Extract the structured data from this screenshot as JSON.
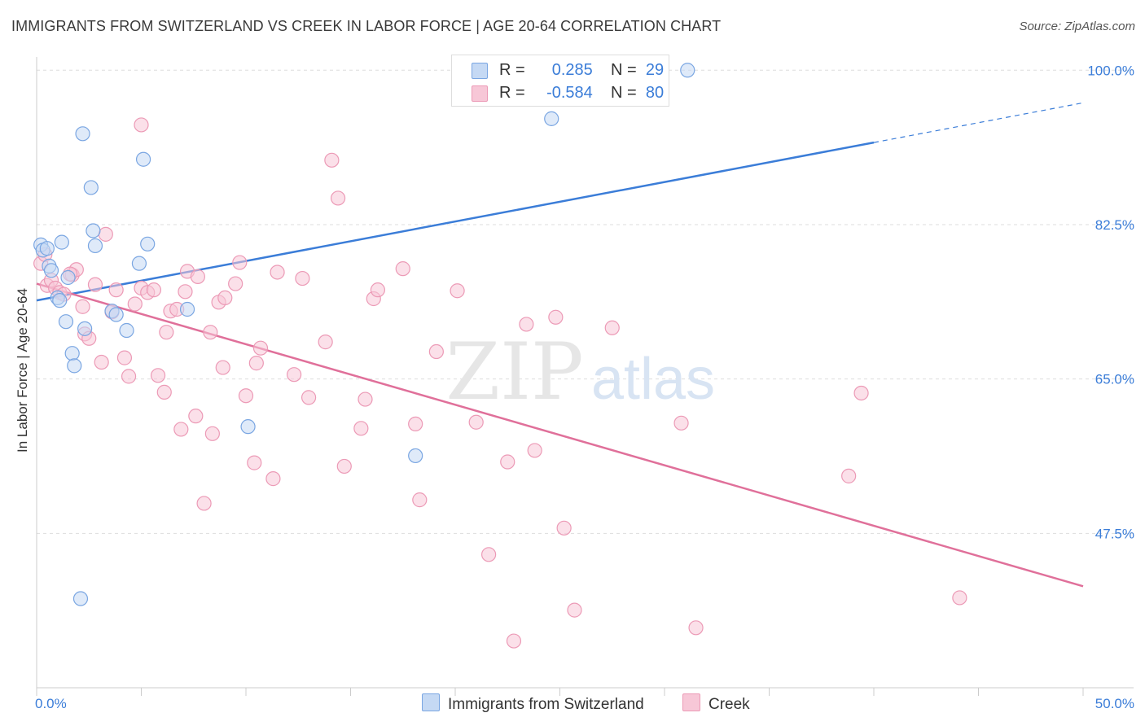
{
  "title": "IMMIGRANTS FROM SWITZERLAND VS CREEK IN LABOR FORCE | AGE 20-64 CORRELATION CHART",
  "source": "Source: ZipAtlas.com",
  "watermark": {
    "zip": "ZIP",
    "atlas": "atlas"
  },
  "legend_top": [
    {
      "r_label": "R =",
      "r_value": "0.285",
      "n_label": "N =",
      "n_value": "29"
    },
    {
      "r_label": "R =",
      "r_value": "-0.584",
      "n_label": "N =",
      "n_value": "80"
    }
  ],
  "colors": {
    "blue": "#3b7dd8",
    "blue_fill": "#c5d9f4",
    "blue_stroke": "#7aa6e2",
    "pink": "#e0709a",
    "pink_fill": "#f7c7d7",
    "pink_stroke": "#ec9ab6",
    "grid": "#dddddd",
    "axis_label": "#3b7dd8"
  },
  "chart_data": {
    "type": "scatter",
    "title": "IMMIGRANTS FROM SWITZERLAND VS CREEK IN LABOR FORCE | AGE 20-64 CORRELATION CHART",
    "xlabel": "",
    "ylabel": "In Labor Force | Age 20-64",
    "xlim": [
      0,
      50
    ],
    "ylim": [
      30,
      101.5
    ],
    "x_tick_labels": [
      "0.0%",
      "50.0%"
    ],
    "y_ticks": [
      47.5,
      65.0,
      82.5,
      100.0
    ],
    "y_tick_labels": [
      "47.5%",
      "65.0%",
      "82.5%",
      "100.0%"
    ],
    "series": [
      {
        "name": "Immigrants from Switzerland",
        "color": "blue",
        "r": 0.285,
        "n": 29,
        "trend": {
          "x0": 0,
          "y0": 73.9,
          "x1": 40,
          "y1": 91.8,
          "x_dash_end": 50,
          "y_dash_end": 96.3
        },
        "points": [
          [
            0.2,
            80.2
          ],
          [
            0.3,
            79.6
          ],
          [
            0.5,
            79.8
          ],
          [
            0.6,
            77.8
          ],
          [
            0.7,
            77.3
          ],
          [
            1.0,
            74.2
          ],
          [
            1.1,
            73.9
          ],
          [
            1.2,
            80.5
          ],
          [
            1.4,
            71.5
          ],
          [
            1.5,
            76.5
          ],
          [
            1.7,
            67.9
          ],
          [
            1.8,
            66.5
          ],
          [
            2.2,
            92.8
          ],
          [
            2.3,
            70.7
          ],
          [
            2.6,
            86.7
          ],
          [
            2.7,
            81.8
          ],
          [
            2.8,
            80.1
          ],
          [
            3.6,
            72.7
          ],
          [
            3.8,
            72.3
          ],
          [
            4.3,
            70.5
          ],
          [
            4.9,
            78.1
          ],
          [
            5.1,
            89.9
          ],
          [
            5.3,
            80.3
          ],
          [
            7.2,
            72.9
          ],
          [
            10.1,
            59.6
          ],
          [
            18.1,
            56.3
          ],
          [
            24.6,
            94.5
          ],
          [
            31.1,
            100.0
          ],
          [
            2.1,
            40.1
          ]
        ]
      },
      {
        "name": "Creek",
        "color": "pink",
        "r": -0.584,
        "n": 80,
        "trend": {
          "x0": 0,
          "y0": 75.8,
          "x1": 50,
          "y1": 41.5
        },
        "points": [
          [
            0.2,
            78.1
          ],
          [
            0.4,
            79.1
          ],
          [
            0.5,
            75.6
          ],
          [
            0.7,
            76.2
          ],
          [
            0.9,
            75.3
          ],
          [
            1.1,
            74.8
          ],
          [
            1.3,
            74.6
          ],
          [
            1.7,
            76.8
          ],
          [
            1.9,
            77.4
          ],
          [
            2.2,
            73.2
          ],
          [
            2.3,
            70.1
          ],
          [
            2.5,
            69.6
          ],
          [
            2.8,
            75.7
          ],
          [
            3.1,
            66.9
          ],
          [
            3.3,
            81.4
          ],
          [
            3.6,
            72.6
          ],
          [
            3.8,
            75.1
          ],
          [
            4.2,
            67.4
          ],
          [
            4.4,
            65.3
          ],
          [
            4.7,
            73.5
          ],
          [
            5.0,
            75.3
          ],
          [
            5.0,
            93.8
          ],
          [
            5.3,
            74.8
          ],
          [
            5.6,
            75.1
          ],
          [
            5.8,
            65.4
          ],
          [
            6.1,
            63.5
          ],
          [
            6.2,
            70.3
          ],
          [
            6.4,
            72.7
          ],
          [
            6.7,
            72.9
          ],
          [
            6.9,
            59.3
          ],
          [
            7.1,
            74.9
          ],
          [
            7.2,
            77.2
          ],
          [
            7.6,
            60.8
          ],
          [
            7.7,
            76.6
          ],
          [
            8.0,
            50.9
          ],
          [
            8.3,
            70.3
          ],
          [
            8.4,
            58.8
          ],
          [
            8.7,
            73.7
          ],
          [
            8.9,
            66.3
          ],
          [
            9.0,
            74.2
          ],
          [
            9.5,
            75.8
          ],
          [
            9.7,
            78.2
          ],
          [
            10.0,
            63.1
          ],
          [
            10.4,
            55.5
          ],
          [
            10.5,
            66.8
          ],
          [
            10.7,
            68.5
          ],
          [
            11.3,
            53.7
          ],
          [
            11.5,
            77.1
          ],
          [
            12.3,
            65.5
          ],
          [
            12.7,
            76.4
          ],
          [
            13.0,
            62.9
          ],
          [
            13.8,
            69.2
          ],
          [
            14.1,
            89.8
          ],
          [
            14.4,
            85.5
          ],
          [
            14.7,
            55.1
          ],
          [
            15.5,
            59.4
          ],
          [
            15.7,
            62.7
          ],
          [
            16.1,
            74.1
          ],
          [
            16.3,
            75.1
          ],
          [
            17.5,
            77.5
          ],
          [
            18.1,
            59.9
          ],
          [
            18.3,
            51.3
          ],
          [
            19.1,
            68.1
          ],
          [
            20.1,
            75.0
          ],
          [
            21.0,
            60.1
          ],
          [
            21.6,
            45.1
          ],
          [
            22.5,
            55.6
          ],
          [
            22.8,
            35.3
          ],
          [
            23.4,
            71.2
          ],
          [
            23.8,
            56.9
          ],
          [
            24.8,
            72.0
          ],
          [
            25.2,
            48.1
          ],
          [
            25.7,
            38.8
          ],
          [
            27.5,
            70.8
          ],
          [
            30.8,
            60.0
          ],
          [
            31.5,
            36.8
          ],
          [
            38.8,
            54.0
          ],
          [
            39.4,
            63.4
          ],
          [
            44.1,
            40.2
          ],
          [
            1.6,
            76.9
          ]
        ]
      }
    ]
  },
  "legend_bottom": [
    "Immigrants from Switzerland",
    "Creek"
  ]
}
